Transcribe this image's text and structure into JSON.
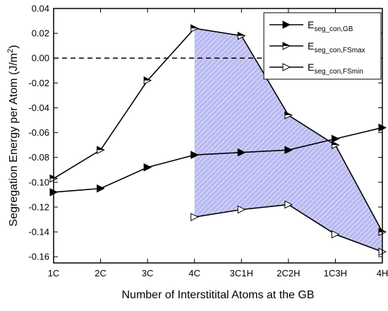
{
  "chart_data": {
    "type": "line",
    "xlabel": "Number of Interstitital Atoms at the GB",
    "ylabel_main": "Segregation Energy per Atom (J/m",
    "ylabel_sup": "2",
    "ylabel_end": ")",
    "categories": [
      "1C",
      "2C",
      "3C",
      "4C",
      "3C1H",
      "2C2H",
      "1C3H",
      "4H"
    ],
    "ylim": [
      -0.165,
      0.04
    ],
    "yticks": [
      0.04,
      0.02,
      0.0,
      -0.02,
      -0.04,
      -0.06,
      -0.08,
      -0.1,
      -0.12,
      -0.14,
      -0.16
    ],
    "ytick_labels": [
      "0.04",
      "0.02",
      "0.00",
      "-0.02",
      "-0.04",
      "-0.06",
      "-0.08",
      "-0.10",
      "-0.12",
      "-0.14",
      "-0.16"
    ],
    "reference_line": 0.0,
    "shaded_band": {
      "from_index": 3,
      "to_index": 7,
      "upper_series": 1,
      "lower_series": 2
    },
    "series": [
      {
        "name_main": "E",
        "name_sub": "seg_con,GB",
        "marker": "filled",
        "values": [
          -0.108,
          -0.105,
          -0.088,
          -0.078,
          -0.076,
          -0.074,
          -0.065,
          -0.056
        ]
      },
      {
        "name_main": "E",
        "name_sub": "seg_con,FSmax",
        "marker": "half",
        "values": [
          -0.097,
          -0.074,
          -0.018,
          0.024,
          0.018,
          -0.046,
          -0.07,
          -0.14
        ]
      },
      {
        "name_main": "E",
        "name_sub": "seg_con,FSmin",
        "marker": "open",
        "values": [
          null,
          null,
          null,
          -0.128,
          -0.122,
          -0.118,
          -0.142,
          -0.156
        ]
      }
    ]
  }
}
